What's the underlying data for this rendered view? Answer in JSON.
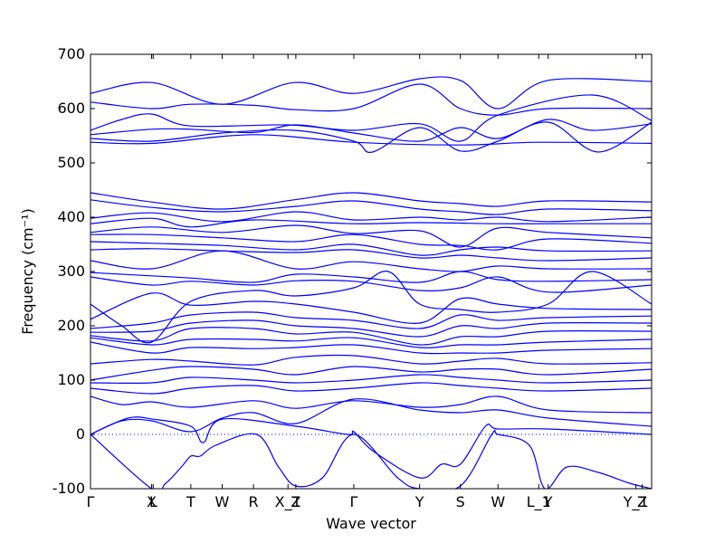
{
  "chart_data": {
    "type": "line",
    "title": "",
    "xlabel": "Wave vector",
    "ylabel": "Frequency (cm⁻¹)",
    "ylim": [
      -100,
      700
    ],
    "y_ticks": [
      -100,
      0,
      100,
      200,
      300,
      400,
      500,
      600,
      700
    ],
    "x_range": [
      0,
      17.9
    ],
    "grid": false,
    "legend": "none",
    "line_color": "#0000ff",
    "zero_line_color": "#0000ff",
    "x_ticks": [
      {
        "label": "Γ",
        "x": 0
      },
      {
        "label": "X",
        "x": 1.95
      },
      {
        "label": "L",
        "x": 2.0
      },
      {
        "label": "T",
        "x": 3.2
      },
      {
        "label": "W",
        "x": 4.2
      },
      {
        "label": "R",
        "x": 5.2
      },
      {
        "label": "X_1",
        "x": 6.3
      },
      {
        "label": "Z",
        "x": 6.55
      },
      {
        "label": "Γ",
        "x": 8.4
      },
      {
        "label": "Y",
        "x": 10.5
      },
      {
        "label": "S",
        "x": 11.8
      },
      {
        "label": "W",
        "x": 13.0
      },
      {
        "label": "L_1",
        "x": 14.3
      },
      {
        "label": "Y",
        "x": 14.6
      },
      {
        "label": "Y_1",
        "x": 17.4
      },
      {
        "label": "Z",
        "x": 17.6
      }
    ],
    "series": [
      {
        "x": [
          0,
          1.95,
          4.2,
          6.5,
          8.4,
          10.5,
          11.8,
          13.0,
          14.6,
          17.9
        ],
        "values": [
          628,
          648,
          608,
          648,
          628,
          655,
          652,
          600,
          652,
          650
        ]
      },
      {
        "x": [
          0,
          1.95,
          3.2,
          5.2,
          6.55,
          8.4,
          10.5,
          11.8,
          13.0,
          14.6,
          17.9
        ],
        "values": [
          612,
          600,
          608,
          606,
          598,
          600,
          645,
          600,
          588,
          600,
          600
        ]
      },
      {
        "x": [
          0,
          1.0,
          1.95,
          3.2,
          6.3,
          8.4,
          10.5,
          11.8,
          13.0,
          16.0,
          17.9
        ],
        "values": [
          560,
          580,
          590,
          568,
          570,
          560,
          572,
          540,
          588,
          625,
          578
        ]
      },
      {
        "x": [
          0,
          1.95,
          3.2,
          5.2,
          6.55,
          8.4,
          10.5,
          11.8,
          13.0,
          14.6,
          16.0,
          17.9
        ],
        "values": [
          552,
          562,
          562,
          556,
          570,
          555,
          540,
          565,
          545,
          580,
          560,
          572
        ]
      },
      {
        "x": [
          0,
          1.95,
          4.2,
          6.5,
          8.4,
          9.0,
          10.5,
          11.8,
          13.0,
          14.6,
          16.2,
          17.9
        ],
        "values": [
          545,
          540,
          555,
          560,
          540,
          520,
          565,
          522,
          540,
          575,
          520,
          575
        ]
      },
      {
        "x": [
          0,
          2.0,
          5.2,
          8.4,
          11.8,
          14.3,
          17.9
        ],
        "values": [
          538,
          536,
          552,
          538,
          533,
          538,
          536
        ]
      },
      {
        "x": [
          0,
          1.95,
          4.2,
          6.5,
          8.4,
          10.5,
          11.8,
          13.0,
          14.6,
          17.9
        ],
        "values": [
          445,
          428,
          415,
          432,
          445,
          430,
          425,
          420,
          430,
          428
        ]
      },
      {
        "x": [
          0,
          1.95,
          4.2,
          6.55,
          8.4,
          10.5,
          11.8,
          13.0,
          14.6,
          17.9
        ],
        "values": [
          432,
          418,
          410,
          420,
          430,
          415,
          410,
          405,
          415,
          412
        ]
      },
      {
        "x": [
          0,
          1.95,
          4.2,
          6.55,
          8.4,
          10.5,
          11.8,
          13.0,
          14.6,
          17.9
        ],
        "values": [
          398,
          408,
          392,
          410,
          395,
          400,
          395,
          400,
          392,
          400
        ]
      },
      {
        "x": [
          0,
          1.95,
          3.2,
          5.2,
          8.4,
          10.5,
          13.0,
          14.6,
          17.9
        ],
        "values": [
          388,
          398,
          382,
          395,
          388,
          390,
          388,
          388,
          388
        ]
      },
      {
        "x": [
          0,
          1.95,
          4.2,
          6.55,
          8.4,
          10.5,
          11.8,
          13.0,
          14.6,
          17.9
        ],
        "values": [
          372,
          382,
          372,
          385,
          370,
          375,
          345,
          380,
          372,
          362
        ]
      },
      {
        "x": [
          0,
          1.95,
          4.2,
          6.55,
          8.4,
          10.5,
          11.8,
          13.0,
          14.6,
          17.9
        ],
        "values": [
          368,
          368,
          362,
          355,
          368,
          350,
          348,
          340,
          360,
          352
        ]
      },
      {
        "x": [
          0,
          1.95,
          4.2,
          6.55,
          8.4,
          10.5,
          11.8,
          13.0,
          14.6,
          17.9
        ],
        "values": [
          355,
          352,
          348,
          340,
          350,
          330,
          340,
          345,
          338,
          338
        ]
      },
      {
        "x": [
          0,
          1.95,
          4.2,
          6.55,
          8.4,
          10.5,
          11.8,
          13.0,
          14.6,
          17.9
        ],
        "values": [
          340,
          342,
          338,
          335,
          340,
          325,
          330,
          325,
          320,
          325
        ]
      },
      {
        "x": [
          0,
          1.95,
          4.2,
          6.55,
          8.4,
          10.5,
          11.8,
          13.0,
          14.6,
          17.9
        ],
        "values": [
          320,
          305,
          338,
          305,
          318,
          305,
          300,
          310,
          305,
          305
        ]
      },
      {
        "x": [
          0,
          1.95,
          3.2,
          5.2,
          6.55,
          8.4,
          10.5,
          11.8,
          13.0,
          14.6,
          17.9
        ],
        "values": [
          298,
          292,
          288,
          280,
          295,
          290,
          280,
          300,
          285,
          282,
          285
        ]
      },
      {
        "x": [
          0,
          1.95,
          3.2,
          5.2,
          6.55,
          8.4,
          10.5,
          11.8,
          13.0,
          14.6,
          17.9
        ],
        "values": [
          290,
          275,
          282,
          275,
          283,
          282,
          265,
          270,
          290,
          262,
          275
        ]
      },
      {
        "x": [
          0,
          1.0,
          1.95,
          3.2,
          5.2,
          6.55,
          8.4,
          9.5,
          10.5,
          11.8,
          13.0,
          14.6,
          16.0,
          17.9
        ],
        "values": [
          240,
          200,
          170,
          245,
          265,
          255,
          270,
          300,
          240,
          230,
          225,
          240,
          300,
          240
        ]
      },
      {
        "x": [
          0,
          1.95,
          3.2,
          5.2,
          6.55,
          8.4,
          10.5,
          11.8,
          13.0,
          14.6,
          17.9
        ],
        "values": [
          212,
          260,
          238,
          245,
          240,
          225,
          205,
          250,
          240,
          232,
          230
        ]
      },
      {
        "x": [
          0,
          1.95,
          3.2,
          5.2,
          6.55,
          8.4,
          10.5,
          11.8,
          13.0,
          14.6,
          17.9
        ],
        "values": [
          195,
          205,
          220,
          225,
          215,
          210,
          195,
          220,
          210,
          215,
          218
        ]
      },
      {
        "x": [
          0,
          1.95,
          3.2,
          5.2,
          6.55,
          8.4,
          10.5,
          11.8,
          13.0,
          14.6,
          17.9
        ],
        "values": [
          188,
          190,
          205,
          210,
          200,
          195,
          180,
          200,
          195,
          205,
          205
        ]
      },
      {
        "x": [
          0,
          1.95,
          3.2,
          5.2,
          6.55,
          8.4,
          10.5,
          11.8,
          13.0,
          14.6,
          17.9
        ],
        "values": [
          182,
          172,
          195,
          195,
          185,
          188,
          165,
          180,
          180,
          190,
          190
        ]
      },
      {
        "x": [
          0,
          1.95,
          3.2,
          5.2,
          6.55,
          8.4,
          10.5,
          11.8,
          13.0,
          14.6,
          17.9
        ],
        "values": [
          178,
          165,
          175,
          175,
          172,
          178,
          160,
          165,
          165,
          170,
          175
        ]
      },
      {
        "x": [
          0,
          1.95,
          3.2,
          5.2,
          6.55,
          8.4,
          10.5,
          11.8,
          13.0,
          14.6,
          17.9
        ],
        "values": [
          170,
          150,
          160,
          158,
          160,
          165,
          150,
          150,
          150,
          155,
          158
        ]
      },
      {
        "x": [
          0,
          1.95,
          3.2,
          5.2,
          6.55,
          8.4,
          10.5,
          11.8,
          13.0,
          14.6,
          17.9
        ],
        "values": [
          130,
          138,
          135,
          128,
          142,
          145,
          130,
          135,
          140,
          130,
          132
        ]
      },
      {
        "x": [
          0,
          1.95,
          3.2,
          5.2,
          6.55,
          8.4,
          10.5,
          11.8,
          13.0,
          14.6,
          17.9
        ],
        "values": [
          100,
          118,
          125,
          120,
          110,
          125,
          115,
          120,
          120,
          110,
          120
        ]
      },
      {
        "x": [
          0,
          1.95,
          3.2,
          5.2,
          6.55,
          8.4,
          10.5,
          11.8,
          13.0,
          14.6,
          17.9
        ],
        "values": [
          95,
          95,
          105,
          100,
          95,
          100,
          110,
          105,
          100,
          95,
          100
        ]
      },
      {
        "x": [
          0,
          1.95,
          3.2,
          5.2,
          6.55,
          8.4,
          10.5,
          11.8,
          13.0,
          14.6,
          17.9
        ],
        "values": [
          85,
          75,
          85,
          90,
          80,
          85,
          95,
          90,
          85,
          80,
          85
        ]
      },
      {
        "x": [
          0,
          1.0,
          1.95,
          3.2,
          5.2,
          6.55,
          8.4,
          10.5,
          11.8,
          13.0,
          14.6,
          17.9
        ],
        "values": [
          70,
          55,
          60,
          50,
          62,
          48,
          62,
          50,
          55,
          70,
          45,
          40
        ]
      },
      {
        "x": [
          0,
          1.0,
          1.95,
          3.2,
          4.2,
          5.2,
          6.55,
          8.4,
          10.5,
          11.8,
          13.0,
          14.6,
          17.9
        ],
        "values": [
          0,
          25,
          25,
          5,
          30,
          40,
          20,
          65,
          45,
          40,
          45,
          30,
          15
        ]
      },
      {
        "x": [
          0,
          1.2,
          2.0,
          3.2,
          3.6,
          4.2,
          6.55,
          8.2,
          8.4,
          9.0,
          10.5,
          11.2,
          11.8,
          12.6,
          13.0,
          14.6,
          17.9
        ],
        "values": [
          0,
          30,
          28,
          15,
          -15,
          28,
          15,
          0,
          5,
          -30,
          -80,
          -55,
          -55,
          15,
          10,
          10,
          0
        ]
      },
      {
        "x": [
          0,
          1.95,
          2.4,
          2.9,
          3.2,
          3.5,
          4.0,
          5.3,
          6.0,
          6.55,
          7.4,
          8.4,
          9.8,
          10.5,
          11.8,
          12.8,
          13.0,
          14.0,
          14.5,
          15.2,
          16.2,
          17.2,
          17.9
        ],
        "values": [
          0,
          -100,
          -90,
          -60,
          -40,
          -40,
          -20,
          0,
          -60,
          -95,
          -80,
          0,
          -80,
          -100,
          -95,
          0,
          0,
          -20,
          -100,
          -60,
          -70,
          -90,
          -100
        ]
      }
    ]
  }
}
